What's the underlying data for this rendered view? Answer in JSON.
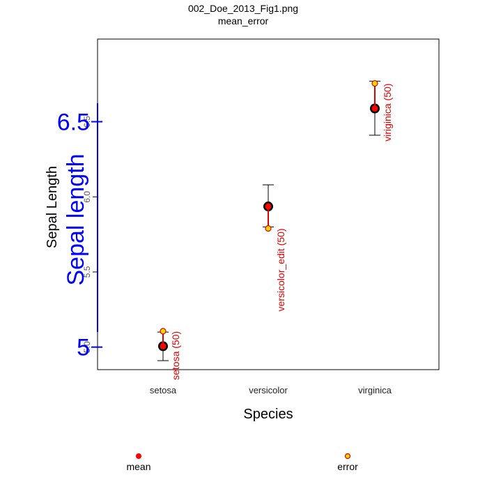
{
  "chart_data": {
    "type": "scatter",
    "title": "002_Doe_2013_Fig1.png",
    "subtitle": "mean_error",
    "xlabel": "Species",
    "ylabel": "Sepal Length",
    "ylabel_overlay": "Sepal length",
    "categories": [
      "setosa",
      "versicolor",
      "virginica"
    ],
    "ylim": [
      4.85,
      7.05
    ],
    "grid": false,
    "legend_position": "bottom",
    "y_ticks": [
      {
        "value": 5.0,
        "label": "5.0"
      },
      {
        "value": 5.5,
        "label": "5.5"
      },
      {
        "value": 6.0,
        "label": "6.0"
      },
      {
        "value": 6.5,
        "label": "6.5"
      }
    ],
    "y_ticks_overlay": [
      {
        "value": 5.0,
        "label": "5"
      },
      {
        "value": 6.5,
        "label": "6.5"
      }
    ],
    "series_original": [
      {
        "category": "setosa",
        "mean": 5.006,
        "lower": 4.91,
        "upper": 5.1
      },
      {
        "category": "versicolor",
        "mean": 5.936,
        "lower": 5.8,
        "upper": 6.08
      },
      {
        "category": "virginica",
        "mean": 6.588,
        "lower": 6.41,
        "upper": 6.77
      }
    ],
    "series_overlay": [
      {
        "category": "setosa",
        "mean": 5.006,
        "error": 5.106,
        "label": "setosa (50)"
      },
      {
        "category": "versicolor",
        "mean": 5.936,
        "error": 5.79,
        "label": "versicolor_edit (50)"
      },
      {
        "category": "virginica",
        "mean": 6.588,
        "error": 6.755,
        "label": "viriginica (50)"
      }
    ],
    "legend": [
      {
        "name": "mean",
        "marker": "filled-red-circle"
      },
      {
        "name": "error",
        "marker": "orange-circle-red-border"
      }
    ],
    "colors": {
      "overlay_axis": "#0000ff",
      "overlay_text": "#e00000",
      "mean_marker": "#ff0000",
      "error_fill": "#ffd700",
      "error_border": "#e00000",
      "original_point": "#000000"
    }
  }
}
